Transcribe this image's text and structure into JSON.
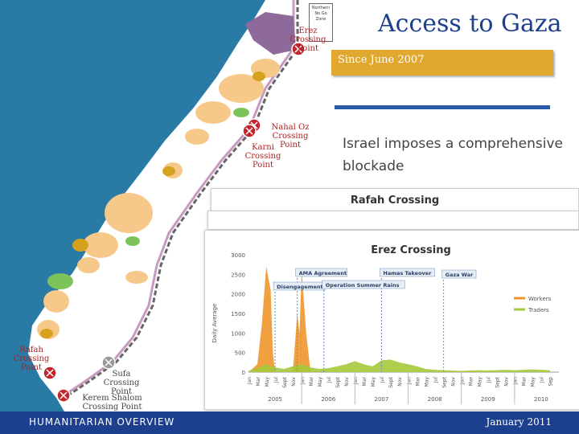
{
  "slide": {
    "title": "Access to Gaza",
    "subtitle": "Since June 2007",
    "body": "Israel imposes a comprehensive blockade",
    "footer_left": "HUMANITARIAN OVERVIEW",
    "footer_right": "January 2011"
  },
  "map": {
    "inset_label": "Northern No Go Zone",
    "crossings": [
      {
        "name": "Erez Crossing Point",
        "status": "closed"
      },
      {
        "name": "Nahal Oz Crossing Point",
        "status": "closed"
      },
      {
        "name": "Karni Crossing Point",
        "status": "closed"
      },
      {
        "name": "Rafah Crossing Point",
        "status": "closed"
      },
      {
        "name": "Sufa Crossing Point",
        "status": "inactive"
      },
      {
        "name": "Kerem Shalom Crossing Point",
        "status": "closed"
      }
    ],
    "colors": {
      "sea": "#2a7aa6",
      "land": "#ffffff",
      "urban": "#f6c98a",
      "agri": "#7cc45a",
      "closed": "#c2262e",
      "inactive": "#9a9a9a"
    }
  },
  "panels": {
    "rafah_title": "Rafah Crossing",
    "erez_title": "Erez Crossing"
  },
  "chart_data": {
    "type": "area",
    "title": "Erez Crossing",
    "ylabel": "Daily Average",
    "ylim": [
      0,
      3000
    ],
    "yticks": [
      0,
      500,
      1000,
      1500,
      2000,
      2500,
      3000
    ],
    "x_month_labels": [
      "Jan",
      "Mar",
      "May",
      "Jul",
      "Sept",
      "Nov",
      "Jan",
      "Mar",
      "May",
      "Jul",
      "Sept",
      "Nov",
      "Jan",
      "Mar",
      "May",
      "Jul",
      "Sept",
      "Nov",
      "Jan",
      "Mar",
      "May",
      "Jul",
      "Sept",
      "Nov",
      "Jan",
      "Mar",
      "May",
      "Jul",
      "Sept",
      "Nov",
      "Jan",
      "Mar",
      "May",
      "Jul",
      "Sep"
    ],
    "years": [
      "2005",
      "2006",
      "2007",
      "2008",
      "2009",
      "2010"
    ],
    "annotations": [
      "AMA Agreement",
      "Hamas Takeover",
      "Gaza War",
      "Disengagement",
      "Operation Summer Rains"
    ],
    "legend_position": "right",
    "series": [
      {
        "name": "Workers",
        "color": "#f0962a",
        "x": [
          0,
          2,
          3,
          4,
          5,
          5.5,
          6,
          7,
          9,
          10,
          11,
          11.5,
          12,
          13,
          14,
          15,
          16,
          17,
          18,
          19,
          20,
          22,
          23,
          25,
          27,
          28,
          29,
          30,
          32,
          34,
          36,
          38,
          40,
          42,
          44,
          46,
          48,
          50,
          52,
          54,
          56,
          58,
          60,
          62,
          64,
          66,
          68
        ],
        "values": [
          0,
          200,
          1200,
          2700,
          2100,
          500,
          0,
          0,
          0,
          0,
          1500,
          1000,
          2600,
          1000,
          0,
          0,
          0,
          0,
          0,
          0,
          0,
          0,
          0,
          0,
          0,
          0,
          0,
          0,
          0,
          0,
          0,
          0,
          0,
          0,
          0,
          0,
          0,
          0,
          0,
          0,
          0,
          0,
          0,
          0,
          0,
          0,
          0
        ]
      },
      {
        "name": "Traders",
        "color": "#a6c93a",
        "x": [
          0,
          2,
          4,
          6,
          8,
          10,
          12,
          14,
          16,
          18,
          20,
          22,
          24,
          26,
          28,
          30,
          32,
          34,
          36,
          38,
          40,
          42,
          44,
          46,
          48,
          50,
          52,
          54,
          56,
          58,
          60,
          62,
          64,
          66,
          68
        ],
        "values": [
          30,
          100,
          200,
          120,
          80,
          150,
          200,
          120,
          80,
          100,
          150,
          200,
          280,
          200,
          150,
          300,
          320,
          250,
          200,
          150,
          80,
          60,
          50,
          40,
          30,
          40,
          50,
          40,
          50,
          60,
          50,
          60,
          70,
          60,
          50
        ]
      }
    ]
  }
}
